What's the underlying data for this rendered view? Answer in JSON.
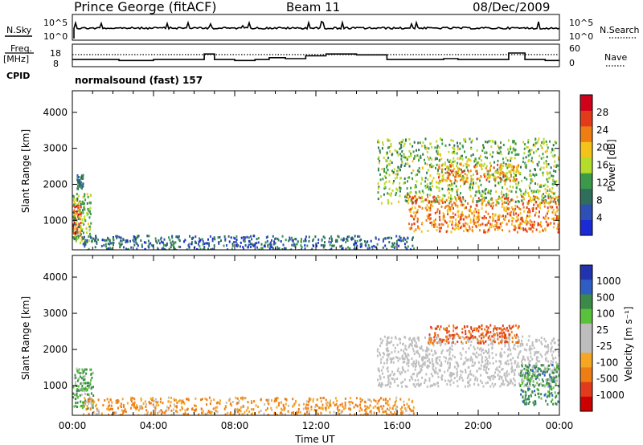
{
  "header": {
    "station": "Prince George (fitACF)",
    "beam": "Beam 11",
    "date": "08/Dec/2009"
  },
  "side_labels": {
    "nsky": "N.Sky",
    "nsky_hi": "10^5",
    "nsky_lo": "10^0",
    "nsearch": "N.Search",
    "nsearch_hi": "10^5",
    "nsearch_lo": "10^0",
    "freq_line1": "Freq.",
    "freq_line2": "[MHz]",
    "freq_hi": "18",
    "freq_lo": "8",
    "nave": "Nave",
    "nave_hi": "60",
    "nave_lo": "0",
    "cpid": "CPID",
    "cpid_value": "normalsound (fast) 157"
  },
  "colors": {
    "power_scale": [
      "#1a2bd6",
      "#2e4fb5",
      "#2e6e5a",
      "#3a9a4a",
      "#b4dc2a",
      "#f3c21b",
      "#ee7d14",
      "#e23b1c",
      "#d0021b"
    ],
    "velocity_scale": [
      "#2233b0",
      "#2e5ec4",
      "#3b8a4a",
      "#58c23a",
      "#c0c0c0",
      "#bdbdbd",
      "#f5a623",
      "#ee7d14",
      "#e23b1c",
      "#cc0000"
    ],
    "ground_scatter": "#bfbfbf"
  },
  "chart_data": [
    {
      "type": "line",
      "panel": "noise-counts",
      "series": [
        {
          "name": "N.Sky",
          "level": "approx 10^3 with small spikes"
        },
        {
          "name": "N.Search",
          "style": "dotted"
        }
      ],
      "ylim_labels": [
        "10^0",
        "10^5"
      ]
    },
    {
      "type": "line",
      "panel": "frequency-nave",
      "x_hours": [
        0,
        1.7,
        2.3,
        4.0,
        6.5,
        7.0,
        8.0,
        9.0,
        9.7,
        10.5,
        11.5,
        12.5,
        14.0,
        15.5,
        17.0,
        18.3,
        19.0,
        21.5,
        22.3,
        23.3,
        24
      ],
      "freq_step_levels": [
        11,
        11,
        10.5,
        11,
        14,
        11,
        10.5,
        11,
        12,
        11.5,
        13,
        14,
        13.5,
        11,
        11,
        11.5,
        11,
        14.5,
        11,
        10.5,
        11
      ]
    },
    {
      "type": "heatmap",
      "panel": "power",
      "title": "",
      "xlabel": "",
      "ylabel": "Slant Range [km]",
      "colorbar_label": "Power [dB]",
      "colorbar_ticks": [
        "4",
        "8",
        "12",
        "16",
        "20",
        "24",
        "28"
      ],
      "ylim": [
        180,
        4600
      ],
      "yticks": [
        "1000",
        "2000",
        "3000",
        "4000"
      ],
      "xlim_hours": [
        0,
        24
      ],
      "regions": [
        {
          "t0": 0.0,
          "t1": 0.4,
          "r0": 600,
          "r1": 1500,
          "level": 28
        },
        {
          "t0": 0.0,
          "t1": 0.9,
          "r0": 400,
          "r1": 1800,
          "level": 14
        },
        {
          "t0": 0.2,
          "t1": 0.5,
          "r0": 1900,
          "r1": 2300,
          "level": 8
        },
        {
          "t0": 0.5,
          "t1": 16.8,
          "r0": 180,
          "r1": 600,
          "level": 6
        },
        {
          "t0": 15.0,
          "t1": 24,
          "r0": 1500,
          "r1": 3300,
          "level": 14
        },
        {
          "t0": 18.0,
          "t1": 22.0,
          "r0": 2100,
          "r1": 2600,
          "level": 22
        },
        {
          "t0": 16.5,
          "t1": 24,
          "r0": 700,
          "r1": 1700,
          "level": 24
        }
      ]
    },
    {
      "type": "heatmap",
      "panel": "velocity",
      "title": "",
      "xlabel": "Time UT",
      "ylabel": "Slant Range [km]",
      "colorbar_label": "Velocity [m s⁻¹]",
      "colorbar_ticks": [
        "1000",
        "500",
        "100",
        "25",
        "-25",
        "-100",
        "-500",
        "-1000"
      ],
      "ylim": [
        180,
        4600
      ],
      "yticks": [
        "1000",
        "2000",
        "3000",
        "4000"
      ],
      "xlim_hours": [
        0,
        24
      ],
      "xticks": [
        "00:00",
        "04:00",
        "08:00",
        "12:00",
        "16:00",
        "20:00",
        "00:00"
      ],
      "regions": [
        {
          "t0": 0.0,
          "t1": 1.0,
          "r0": 400,
          "r1": 1500,
          "vel": 100
        },
        {
          "t0": 0.5,
          "t1": 16.8,
          "r0": 180,
          "r1": 700,
          "vel": -100
        },
        {
          "t0": 15.0,
          "t1": 24,
          "r0": 1000,
          "r1": 2400,
          "vel": 0
        },
        {
          "t0": 17.5,
          "t1": 22.0,
          "r0": 2200,
          "r1": 2700,
          "vel": -300
        },
        {
          "t0": 22.0,
          "t1": 24,
          "r0": 500,
          "r1": 1600,
          "vel": 200
        }
      ]
    }
  ]
}
